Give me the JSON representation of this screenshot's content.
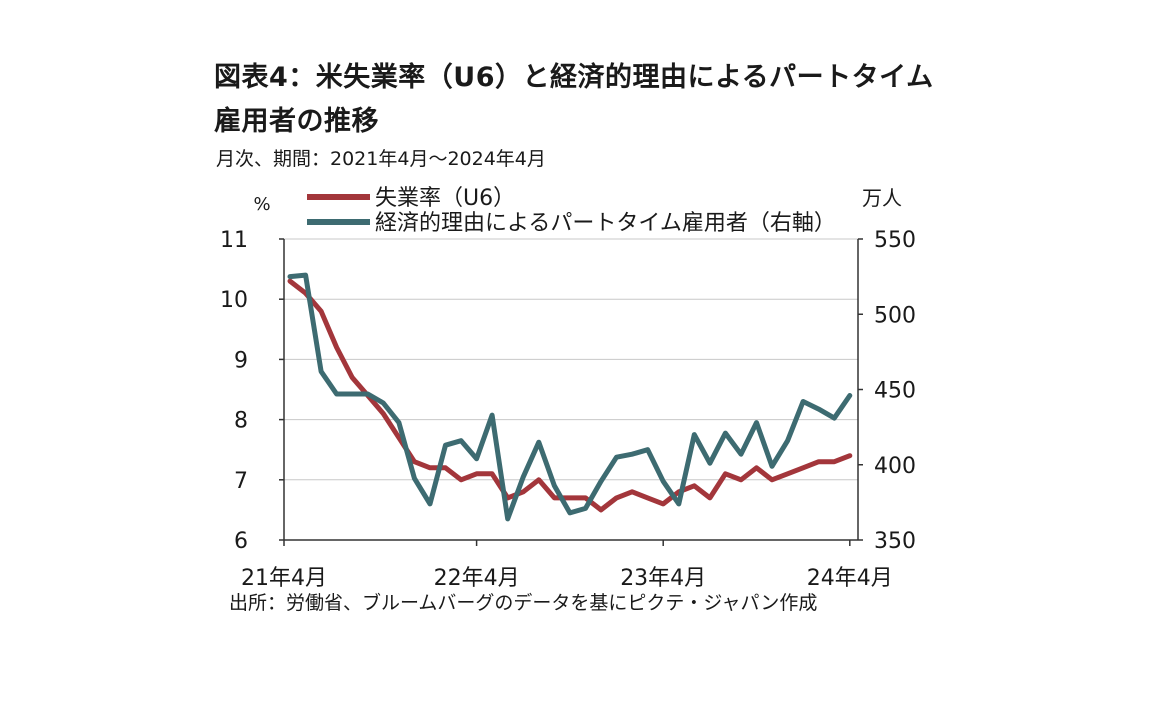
{
  "header": {
    "title": "図表4：米失業率（U6）と経済的理由によるパートタイム雇用者の推移",
    "subtitle": "月次、期間：2021年4月～2024年4月"
  },
  "footer": {
    "source": "出所：労働省、ブルームバーグのデータを基にピクテ・ジャパン作成"
  },
  "chart_data": {
    "type": "line",
    "left_axis_unit": "%",
    "right_axis_unit": "万人",
    "x": [
      "2021-04",
      "2021-05",
      "2021-06",
      "2021-07",
      "2021-08",
      "2021-09",
      "2021-10",
      "2021-11",
      "2021-12",
      "2022-01",
      "2022-02",
      "2022-03",
      "2022-04",
      "2022-05",
      "2022-06",
      "2022-07",
      "2022-08",
      "2022-09",
      "2022-10",
      "2022-11",
      "2022-12",
      "2023-01",
      "2023-02",
      "2023-03",
      "2023-04",
      "2023-05",
      "2023-06",
      "2023-07",
      "2023-08",
      "2023-09",
      "2023-10",
      "2023-11",
      "2023-12",
      "2024-01",
      "2024-02",
      "2024-03",
      "2024-04"
    ],
    "x_tick_labels": [
      "21年4月",
      "22年4月",
      "23年4月",
      "24年4月"
    ],
    "x_tick_indices": [
      0,
      12,
      24,
      36
    ],
    "left_ylim": [
      6,
      11
    ],
    "left_yticks": [
      6,
      7,
      8,
      9,
      10,
      11
    ],
    "right_ylim": [
      350,
      550
    ],
    "right_yticks": [
      350,
      400,
      450,
      500,
      550
    ],
    "grid": true,
    "legend_position": "top",
    "series": [
      {
        "name": "失業率（U6）",
        "axis": "left",
        "color": "#a3363b",
        "values": [
          10.3,
          10.1,
          9.8,
          9.2,
          8.7,
          8.4,
          8.1,
          7.7,
          7.3,
          7.2,
          7.2,
          7.0,
          7.1,
          7.1,
          6.7,
          6.8,
          7.0,
          6.7,
          6.7,
          6.7,
          6.5,
          6.7,
          6.8,
          6.7,
          6.6,
          6.8,
          6.9,
          6.7,
          7.1,
          7.0,
          7.2,
          7.0,
          7.1,
          7.2,
          7.3,
          7.3,
          7.4
        ]
      },
      {
        "name": "経済的理由によるパートタイム雇用者（右軸）",
        "axis": "right",
        "color": "#3d6b71",
        "values": [
          525,
          526,
          462,
          447,
          447,
          447,
          441,
          428,
          391,
          374,
          413,
          416,
          404,
          433,
          364,
          392,
          415,
          386,
          368,
          371,
          389,
          405,
          407,
          410,
          389,
          374,
          420,
          401,
          421,
          407,
          428,
          399,
          416,
          442,
          437,
          431,
          446
        ]
      }
    ]
  }
}
